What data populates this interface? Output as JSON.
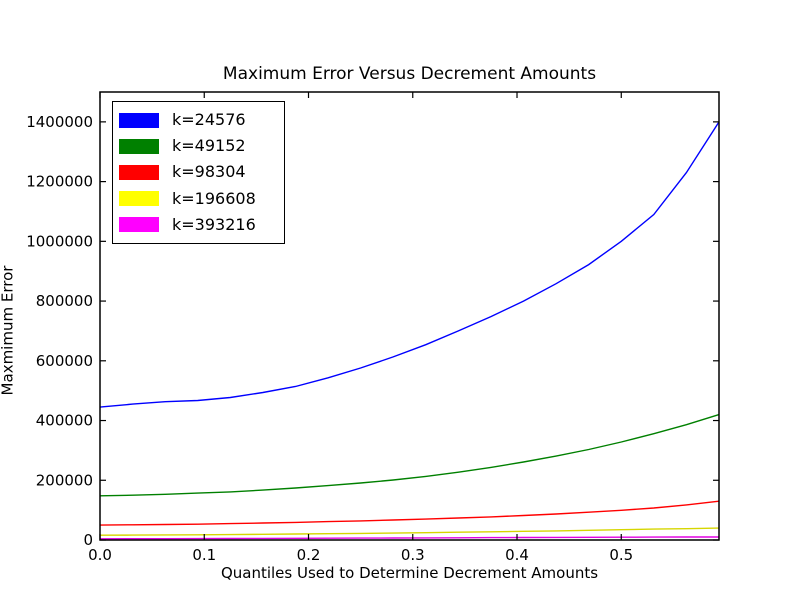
{
  "chart_data": {
    "type": "line",
    "title": "Maximum Error Versus Decrement Amounts",
    "xlabel": "Quantiles Used to Determine Decrement Amounts",
    "ylabel": "Maxmimum Error",
    "grid": false,
    "legend_position": "upper left",
    "xlim": [
      0,
      0.59375
    ],
    "ylim": [
      0,
      1500000
    ],
    "xticks": {
      "values": [
        0.0,
        0.1,
        0.2,
        0.3,
        0.4,
        0.5
      ],
      "labels": [
        "0.0",
        "0.1",
        "0.2",
        "0.3",
        "0.4",
        "0.5"
      ]
    },
    "yticks": {
      "values": [
        0,
        200000,
        400000,
        600000,
        800000,
        1000000,
        1200000,
        1400000
      ],
      "labels": [
        "0",
        "200000",
        "400000",
        "600000",
        "800000",
        "1000000",
        "1200000",
        "1400000"
      ]
    },
    "x": [
      0.0,
      0.03125,
      0.0625,
      0.09375,
      0.125,
      0.15625,
      0.1875,
      0.21875,
      0.25,
      0.28125,
      0.3125,
      0.34375,
      0.375,
      0.40625,
      0.4375,
      0.46875,
      0.5,
      0.53125,
      0.5625,
      0.59375
    ],
    "series": [
      {
        "name": "k=24576",
        "color": "#0000ff",
        "stroke": "#0000ff",
        "values": [
          445000,
          455000,
          463000,
          467000,
          477000,
          494000,
          514000,
          543000,
          576000,
          613000,
          654000,
          700000,
          748000,
          800000,
          858000,
          922000,
          1000000,
          1090000,
          1230000,
          1400000
        ]
      },
      {
        "name": "k=49152",
        "color": "#008000",
        "stroke": "#008000",
        "values": [
          148000,
          150000,
          153000,
          157000,
          161000,
          167000,
          174000,
          182000,
          191000,
          201000,
          213000,
          227000,
          243000,
          261000,
          281000,
          303000,
          328000,
          356000,
          386000,
          420000
        ]
      },
      {
        "name": "k=98304",
        "color": "#ff0000",
        "stroke": "#ff0000",
        "values": [
          50000,
          51000,
          52000,
          53000,
          55000,
          57000,
          59000,
          61500,
          64000,
          67000,
          70000,
          73500,
          77500,
          82000,
          87000,
          93000,
          99500,
          107000,
          117500,
          130000
        ]
      },
      {
        "name": "k=196608",
        "color": "#ffff00",
        "stroke": "#d6d600",
        "values": [
          16000,
          16500,
          17000,
          17500,
          18000,
          19000,
          20000,
          21000,
          22000,
          23000,
          24500,
          26000,
          27500,
          29000,
          30500,
          32500,
          34500,
          36500,
          38000,
          40000
        ]
      },
      {
        "name": "k=393216",
        "color": "#ff00ff",
        "stroke": "#e200e2",
        "values": [
          4000,
          4200,
          4500,
          4700,
          5000,
          5300,
          5600,
          6000,
          6300,
          6700,
          7100,
          7500,
          7900,
          8300,
          8700,
          9100,
          9400,
          9700,
          9900,
          10000
        ]
      }
    ]
  }
}
